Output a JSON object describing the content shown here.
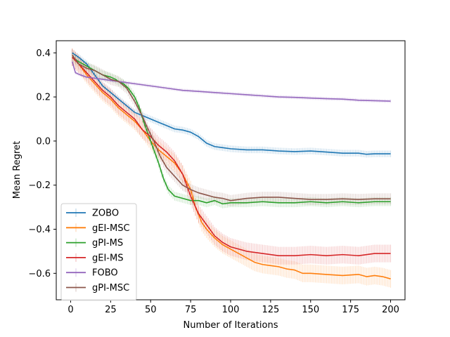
{
  "chart_data": {
    "type": "line",
    "title": "",
    "xlabel": "Number of Iterations",
    "ylabel": "Mean Regret",
    "xlim": [
      -9,
      209
    ],
    "ylim": [
      -0.72,
      0.455
    ],
    "xticks": [
      0,
      25,
      50,
      75,
      100,
      125,
      150,
      175,
      200
    ],
    "yticks": [
      -0.6,
      -0.4,
      -0.2,
      0.0,
      0.2,
      0.4
    ],
    "xtick_labels": [
      "0",
      "25",
      "50",
      "75",
      "100",
      "125",
      "150",
      "175",
      "200"
    ],
    "ytick_labels": [
      "−0.6",
      "−0.4",
      "−0.2",
      "0.0",
      "0.2",
      "0.4"
    ],
    "grid": false,
    "legend_position": "lower-left",
    "series": [
      {
        "name": "ZOBO",
        "color": "#1f77b4",
        "error": 0.015,
        "points": [
          [
            1,
            0.4
          ],
          [
            5,
            0.38
          ],
          [
            10,
            0.35
          ],
          [
            15,
            0.3
          ],
          [
            20,
            0.25
          ],
          [
            25,
            0.22
          ],
          [
            30,
            0.19
          ],
          [
            35,
            0.16
          ],
          [
            40,
            0.13
          ],
          [
            45,
            0.115
          ],
          [
            50,
            0.1
          ],
          [
            55,
            0.085
          ],
          [
            60,
            0.07
          ],
          [
            65,
            0.055
          ],
          [
            70,
            0.05
          ],
          [
            75,
            0.04
          ],
          [
            80,
            0.02
          ],
          [
            85,
            -0.01
          ],
          [
            90,
            -0.025
          ],
          [
            95,
            -0.03
          ],
          [
            100,
            -0.035
          ],
          [
            110,
            -0.04
          ],
          [
            120,
            -0.04
          ],
          [
            130,
            -0.045
          ],
          [
            140,
            -0.048
          ],
          [
            150,
            -0.045
          ],
          [
            160,
            -0.05
          ],
          [
            170,
            -0.055
          ],
          [
            180,
            -0.055
          ],
          [
            185,
            -0.06
          ],
          [
            190,
            -0.058
          ],
          [
            200,
            -0.058
          ]
        ]
      },
      {
        "name": "gEI-MSC",
        "color": "#ff7f0e",
        "error": 0.04,
        "points": [
          [
            1,
            0.38
          ],
          [
            5,
            0.35
          ],
          [
            10,
            0.3
          ],
          [
            15,
            0.26
          ],
          [
            20,
            0.22
          ],
          [
            25,
            0.19
          ],
          [
            30,
            0.15
          ],
          [
            35,
            0.12
          ],
          [
            40,
            0.09
          ],
          [
            45,
            0.05
          ],
          [
            50,
            0.0
          ],
          [
            55,
            -0.04
          ],
          [
            60,
            -0.07
          ],
          [
            65,
            -0.1
          ],
          [
            70,
            -0.15
          ],
          [
            75,
            -0.22
          ],
          [
            78,
            -0.3
          ],
          [
            82,
            -0.37
          ],
          [
            85,
            -0.4
          ],
          [
            90,
            -0.44
          ],
          [
            95,
            -0.47
          ],
          [
            100,
            -0.49
          ],
          [
            105,
            -0.51
          ],
          [
            110,
            -0.53
          ],
          [
            115,
            -0.55
          ],
          [
            120,
            -0.56
          ],
          [
            125,
            -0.565
          ],
          [
            130,
            -0.57
          ],
          [
            135,
            -0.58
          ],
          [
            140,
            -0.585
          ],
          [
            145,
            -0.6
          ],
          [
            150,
            -0.6
          ],
          [
            160,
            -0.605
          ],
          [
            170,
            -0.61
          ],
          [
            180,
            -0.605
          ],
          [
            185,
            -0.615
          ],
          [
            190,
            -0.61
          ],
          [
            195,
            -0.615
          ],
          [
            200,
            -0.625
          ]
        ]
      },
      {
        "name": "gPI-MS",
        "color": "#2ca02c",
        "error": 0.02,
        "points": [
          [
            1,
            0.38
          ],
          [
            5,
            0.36
          ],
          [
            10,
            0.34
          ],
          [
            15,
            0.32
          ],
          [
            20,
            0.3
          ],
          [
            25,
            0.29
          ],
          [
            28,
            0.28
          ],
          [
            30,
            0.27
          ],
          [
            33,
            0.26
          ],
          [
            36,
            0.24
          ],
          [
            40,
            0.2
          ],
          [
            43,
            0.15
          ],
          [
            46,
            0.08
          ],
          [
            49,
            0.02
          ],
          [
            52,
            -0.04
          ],
          [
            55,
            -0.1
          ],
          [
            58,
            -0.17
          ],
          [
            61,
            -0.22
          ],
          [
            65,
            -0.25
          ],
          [
            70,
            -0.26
          ],
          [
            75,
            -0.27
          ],
          [
            80,
            -0.27
          ],
          [
            85,
            -0.28
          ],
          [
            90,
            -0.27
          ],
          [
            95,
            -0.285
          ],
          [
            100,
            -0.28
          ],
          [
            110,
            -0.28
          ],
          [
            120,
            -0.275
          ],
          [
            130,
            -0.28
          ],
          [
            140,
            -0.28
          ],
          [
            150,
            -0.275
          ],
          [
            160,
            -0.28
          ],
          [
            170,
            -0.275
          ],
          [
            180,
            -0.28
          ],
          [
            190,
            -0.275
          ],
          [
            200,
            -0.275
          ]
        ]
      },
      {
        "name": "gEI-MS",
        "color": "#d62728",
        "error": 0.04,
        "points": [
          [
            1,
            0.38
          ],
          [
            5,
            0.35
          ],
          [
            10,
            0.31
          ],
          [
            15,
            0.27
          ],
          [
            20,
            0.23
          ],
          [
            25,
            0.2
          ],
          [
            30,
            0.16
          ],
          [
            35,
            0.13
          ],
          [
            40,
            0.1
          ],
          [
            45,
            0.05
          ],
          [
            50,
            0.02
          ],
          [
            55,
            -0.02
          ],
          [
            60,
            -0.05
          ],
          [
            65,
            -0.09
          ],
          [
            70,
            -0.15
          ],
          [
            75,
            -0.25
          ],
          [
            80,
            -0.33
          ],
          [
            85,
            -0.38
          ],
          [
            90,
            -0.43
          ],
          [
            95,
            -0.46
          ],
          [
            100,
            -0.48
          ],
          [
            105,
            -0.49
          ],
          [
            110,
            -0.5
          ],
          [
            120,
            -0.51
          ],
          [
            130,
            -0.52
          ],
          [
            140,
            -0.52
          ],
          [
            150,
            -0.515
          ],
          [
            160,
            -0.52
          ],
          [
            170,
            -0.515
          ],
          [
            180,
            -0.52
          ],
          [
            190,
            -0.51
          ],
          [
            200,
            -0.51
          ]
        ]
      },
      {
        "name": "FOBO",
        "color": "#9467bd",
        "error": 0.008,
        "points": [
          [
            1,
            0.36
          ],
          [
            3,
            0.31
          ],
          [
            6,
            0.3
          ],
          [
            10,
            0.29
          ],
          [
            15,
            0.285
          ],
          [
            20,
            0.28
          ],
          [
            25,
            0.275
          ],
          [
            30,
            0.27
          ],
          [
            40,
            0.26
          ],
          [
            50,
            0.25
          ],
          [
            60,
            0.24
          ],
          [
            70,
            0.23
          ],
          [
            80,
            0.225
          ],
          [
            90,
            0.22
          ],
          [
            100,
            0.215
          ],
          [
            110,
            0.21
          ],
          [
            120,
            0.205
          ],
          [
            130,
            0.2
          ],
          [
            140,
            0.198
          ],
          [
            150,
            0.195
          ],
          [
            160,
            0.192
          ],
          [
            170,
            0.19
          ],
          [
            180,
            0.185
          ],
          [
            190,
            0.183
          ],
          [
            200,
            0.181
          ]
        ]
      },
      {
        "name": "gPI-MSC",
        "color": "#8c564b",
        "error": 0.025,
        "points": [
          [
            1,
            0.39
          ],
          [
            5,
            0.35
          ],
          [
            10,
            0.33
          ],
          [
            15,
            0.32
          ],
          [
            20,
            0.3
          ],
          [
            25,
            0.28
          ],
          [
            30,
            0.27
          ],
          [
            35,
            0.24
          ],
          [
            40,
            0.18
          ],
          [
            45,
            0.11
          ],
          [
            48,
            0.06
          ],
          [
            52,
            0.0
          ],
          [
            56,
            -0.07
          ],
          [
            60,
            -0.12
          ],
          [
            65,
            -0.16
          ],
          [
            70,
            -0.2
          ],
          [
            75,
            -0.22
          ],
          [
            80,
            -0.235
          ],
          [
            85,
            -0.245
          ],
          [
            90,
            -0.255
          ],
          [
            95,
            -0.26
          ],
          [
            100,
            -0.27
          ],
          [
            110,
            -0.26
          ],
          [
            120,
            -0.255
          ],
          [
            130,
            -0.255
          ],
          [
            140,
            -0.26
          ],
          [
            150,
            -0.265
          ],
          [
            160,
            -0.265
          ],
          [
            170,
            -0.262
          ],
          [
            180,
            -0.265
          ],
          [
            190,
            -0.262
          ],
          [
            200,
            -0.262
          ]
        ]
      }
    ]
  }
}
